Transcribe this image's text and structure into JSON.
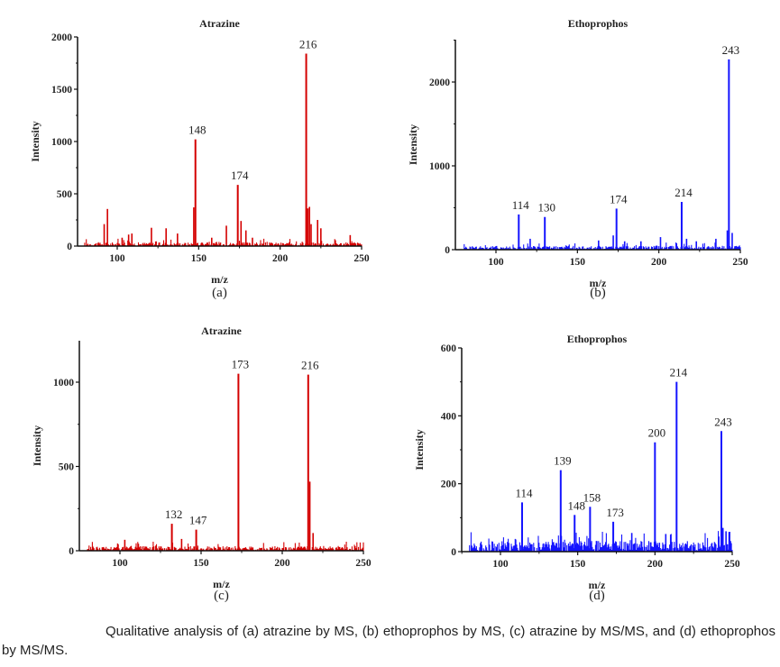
{
  "caption": "Qualitative analysis of (a) atrazine by MS, (b) ethoprophos by MS, (c) atrazine by MS/MS, and (d) ethoprophos by MS/MS.",
  "chart_data": [
    {
      "type": "bar",
      "panel_label": "(a)",
      "title": "Atrazine",
      "xlabel": "m/z",
      "ylabel": "Intensity",
      "xlim": [
        80,
        250
      ],
      "ylim": [
        0,
        2000
      ],
      "xticks": [
        "100",
        "150",
        "200",
        "250"
      ],
      "yticks": [
        "0",
        "500",
        "1000",
        "1500",
        "2000"
      ],
      "color": "#d40000",
      "labeled_peaks": [
        {
          "mz": 148,
          "label": "148",
          "intensity": 1020
        },
        {
          "mz": 174,
          "label": "174",
          "intensity": 585
        },
        {
          "mz": 216,
          "label": "216",
          "intensity": 1840
        }
      ],
      "other_peaks": [
        {
          "mz": 92,
          "intensity": 210
        },
        {
          "mz": 94,
          "intensity": 355
        },
        {
          "mz": 103,
          "intensity": 80
        },
        {
          "mz": 107,
          "intensity": 110
        },
        {
          "mz": 109,
          "intensity": 120
        },
        {
          "mz": 121,
          "intensity": 175
        },
        {
          "mz": 130,
          "intensity": 170
        },
        {
          "mz": 137,
          "intensity": 120
        },
        {
          "mz": 147,
          "intensity": 370
        },
        {
          "mz": 158,
          "intensity": 80
        },
        {
          "mz": 167,
          "intensity": 195
        },
        {
          "mz": 176,
          "intensity": 240
        },
        {
          "mz": 179,
          "intensity": 150
        },
        {
          "mz": 183,
          "intensity": 80
        },
        {
          "mz": 217,
          "intensity": 360
        },
        {
          "mz": 218,
          "intensity": 375
        },
        {
          "mz": 219,
          "intensity": 210
        },
        {
          "mz": 223,
          "intensity": 250
        },
        {
          "mz": 225,
          "intensity": 170
        },
        {
          "mz": 243,
          "intensity": 105
        }
      ],
      "noise_level": 40
    },
    {
      "type": "bar",
      "panel_label": "(b)",
      "title": "Ethoprophos",
      "xlabel": "m/z",
      "ylabel": "Intensity",
      "xlim": [
        80,
        250
      ],
      "ylim": [
        0,
        2500
      ],
      "xticks": [
        "100",
        "150",
        "200",
        "250"
      ],
      "yticks": [
        "0",
        "1000",
        "2000"
      ],
      "color": "#1414ff",
      "labeled_peaks": [
        {
          "mz": 114,
          "label": "114",
          "intensity": 420
        },
        {
          "mz": 130,
          "label": "130",
          "intensity": 390
        },
        {
          "mz": 174,
          "label": "174",
          "intensity": 490
        },
        {
          "mz": 214,
          "label": "214",
          "intensity": 570
        },
        {
          "mz": 243,
          "label": "243",
          "intensity": 2270
        }
      ],
      "other_peaks": [
        {
          "mz": 121,
          "intensity": 130
        },
        {
          "mz": 163,
          "intensity": 110
        },
        {
          "mz": 172,
          "intensity": 170
        },
        {
          "mz": 179,
          "intensity": 100
        },
        {
          "mz": 189,
          "intensity": 100
        },
        {
          "mz": 201,
          "intensity": 150
        },
        {
          "mz": 217,
          "intensity": 130
        },
        {
          "mz": 223,
          "intensity": 100
        },
        {
          "mz": 235,
          "intensity": 130
        },
        {
          "mz": 242,
          "intensity": 230
        },
        {
          "mz": 245,
          "intensity": 200
        }
      ],
      "noise_level": 50
    },
    {
      "type": "bar",
      "panel_label": "(c)",
      "title": "Atrazine",
      "xlabel": "m/z",
      "ylabel": "Intensity",
      "xlim": [
        80,
        250
      ],
      "ylim": [
        0,
        1250
      ],
      "xticks": [
        "100",
        "150",
        "200",
        "250"
      ],
      "yticks": [
        "0",
        "500",
        "1000"
      ],
      "color": "#d40000",
      "labeled_peaks": [
        {
          "mz": 132,
          "label": "132",
          "intensity": 160
        },
        {
          "mz": 147,
          "label": "147",
          "intensity": 125
        },
        {
          "mz": 173,
          "label": "173",
          "intensity": 1050
        },
        {
          "mz": 216,
          "label": "216",
          "intensity": 1045
        }
      ],
      "other_peaks": [
        {
          "mz": 103,
          "intensity": 65
        },
        {
          "mz": 138,
          "intensity": 70
        },
        {
          "mz": 217,
          "intensity": 410
        },
        {
          "mz": 219,
          "intensity": 105
        }
      ],
      "noise_level": 30
    },
    {
      "type": "bar",
      "panel_label": "(d)",
      "title": "Ethoprophos",
      "xlabel": "m/z",
      "ylabel": "Intensity",
      "xlim": [
        80,
        250
      ],
      "ylim": [
        0,
        600
      ],
      "xticks": [
        "100",
        "150",
        "200",
        "250"
      ],
      "yticks": [
        "0",
        "200",
        "400",
        "600"
      ],
      "color": "#1414ff",
      "labeled_peaks": [
        {
          "mz": 114,
          "label": "114",
          "intensity": 145
        },
        {
          "mz": 139,
          "label": "139",
          "intensity": 240
        },
        {
          "mz": 148,
          "label": "148",
          "intensity": 108
        },
        {
          "mz": 158,
          "label": "158",
          "intensity": 132
        },
        {
          "mz": 173,
          "label": "173",
          "intensity": 88
        },
        {
          "mz": 200,
          "label": "200",
          "intensity": 322
        },
        {
          "mz": 214,
          "label": "214",
          "intensity": 500
        },
        {
          "mz": 243,
          "label": "243",
          "intensity": 355
        }
      ],
      "other_peaks": [
        {
          "mz": 185,
          "intensity": 55
        },
        {
          "mz": 207,
          "intensity": 52
        },
        {
          "mz": 244,
          "intensity": 70
        },
        {
          "mz": 246,
          "intensity": 60
        },
        {
          "mz": 248,
          "intensity": 58
        }
      ],
      "noise_level": 35
    }
  ]
}
